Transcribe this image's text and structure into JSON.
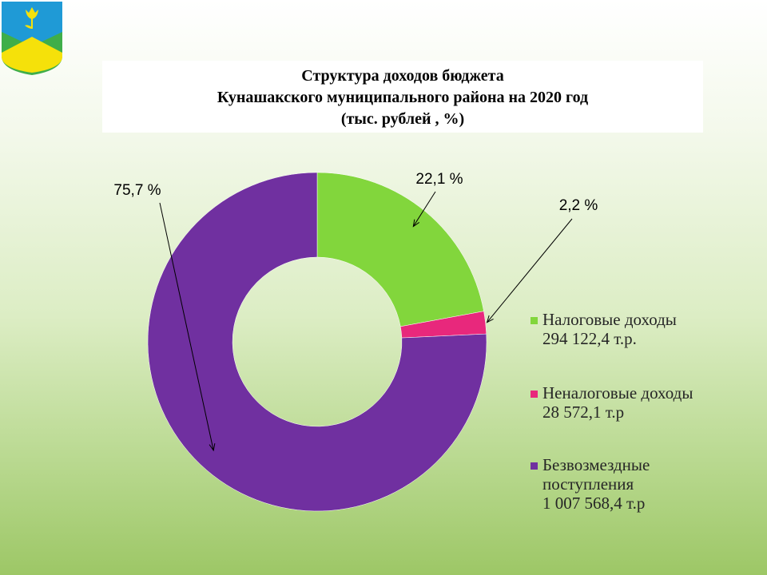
{
  "title": {
    "line1": "Структура доходов  бюджета",
    "line2": "Кунашакского муниципального района на 2020 год",
    "line3": "(тыс. рублей , %)"
  },
  "chart_data": {
    "type": "pie",
    "subtype": "doughnut",
    "title": "Структура доходов  бюджета Кунашакского муниципального района на 2020 год (тыс. рублей , %)",
    "categories": [
      "Налоговые доходы",
      "Неналоговые доходы",
      "Безвозмездные поступления"
    ],
    "values": [
      294122.4,
      28572.1,
      1007568.4
    ],
    "percent_labels": [
      "22,1 %",
      "2,2 %",
      "75,7 %"
    ],
    "legend_position": "right",
    "colors": [
      "#82d63c",
      "#e8287c",
      "#7030a0"
    ]
  },
  "legend": [
    {
      "lines": [
        "Налоговые доходы",
        "294 122,4 т.р."
      ],
      "color": "#82d63c"
    },
    {
      "lines": [
        "Неналоговые доходы",
        "28 572,1 т.р"
      ],
      "color": "#e8287c"
    },
    {
      "lines": [
        "Безвозмездные",
        "поступления",
        "1 007 568,4 т.р"
      ],
      "color": "#7030a0"
    }
  ],
  "emblem": {
    "icon": "tulip-crest-icon",
    "colors": [
      "#1f9ad6",
      "#f5e10a",
      "#3fae49"
    ]
  }
}
